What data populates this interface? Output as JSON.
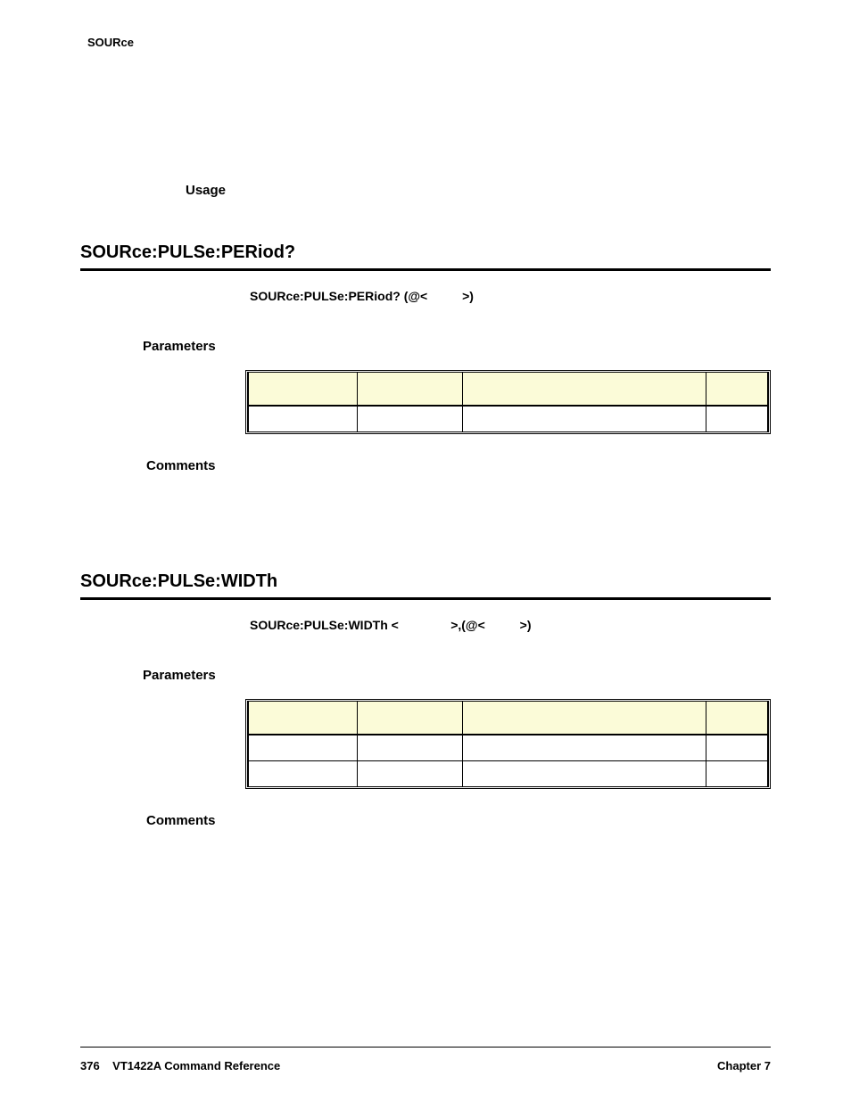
{
  "header": {
    "topLabel": "SOURce"
  },
  "usage": {
    "label": "Usage"
  },
  "sections": [
    {
      "title": "SOURce:PULSe:PERiod?",
      "syntax": "SOURce:PULSe:PERiod? (@<          >)",
      "paramsLabel": "Parameters",
      "commentsLabel": "Comments",
      "table": {
        "headerBg": "#fbfbd8",
        "rows": 1,
        "cols": 4
      }
    },
    {
      "title": "SOURce:PULSe:WIDTh",
      "syntax": "SOURce:PULSe:WIDTh <               >,(@<          >)",
      "paramsLabel": "Parameters",
      "commentsLabel": "Comments",
      "table": {
        "headerBg": "#fbfbd8",
        "rows": 2,
        "cols": 4
      }
    }
  ],
  "footer": {
    "pageNum": "376",
    "docTitle": "VT1422A Command Reference",
    "chapter": "Chapter 7"
  }
}
